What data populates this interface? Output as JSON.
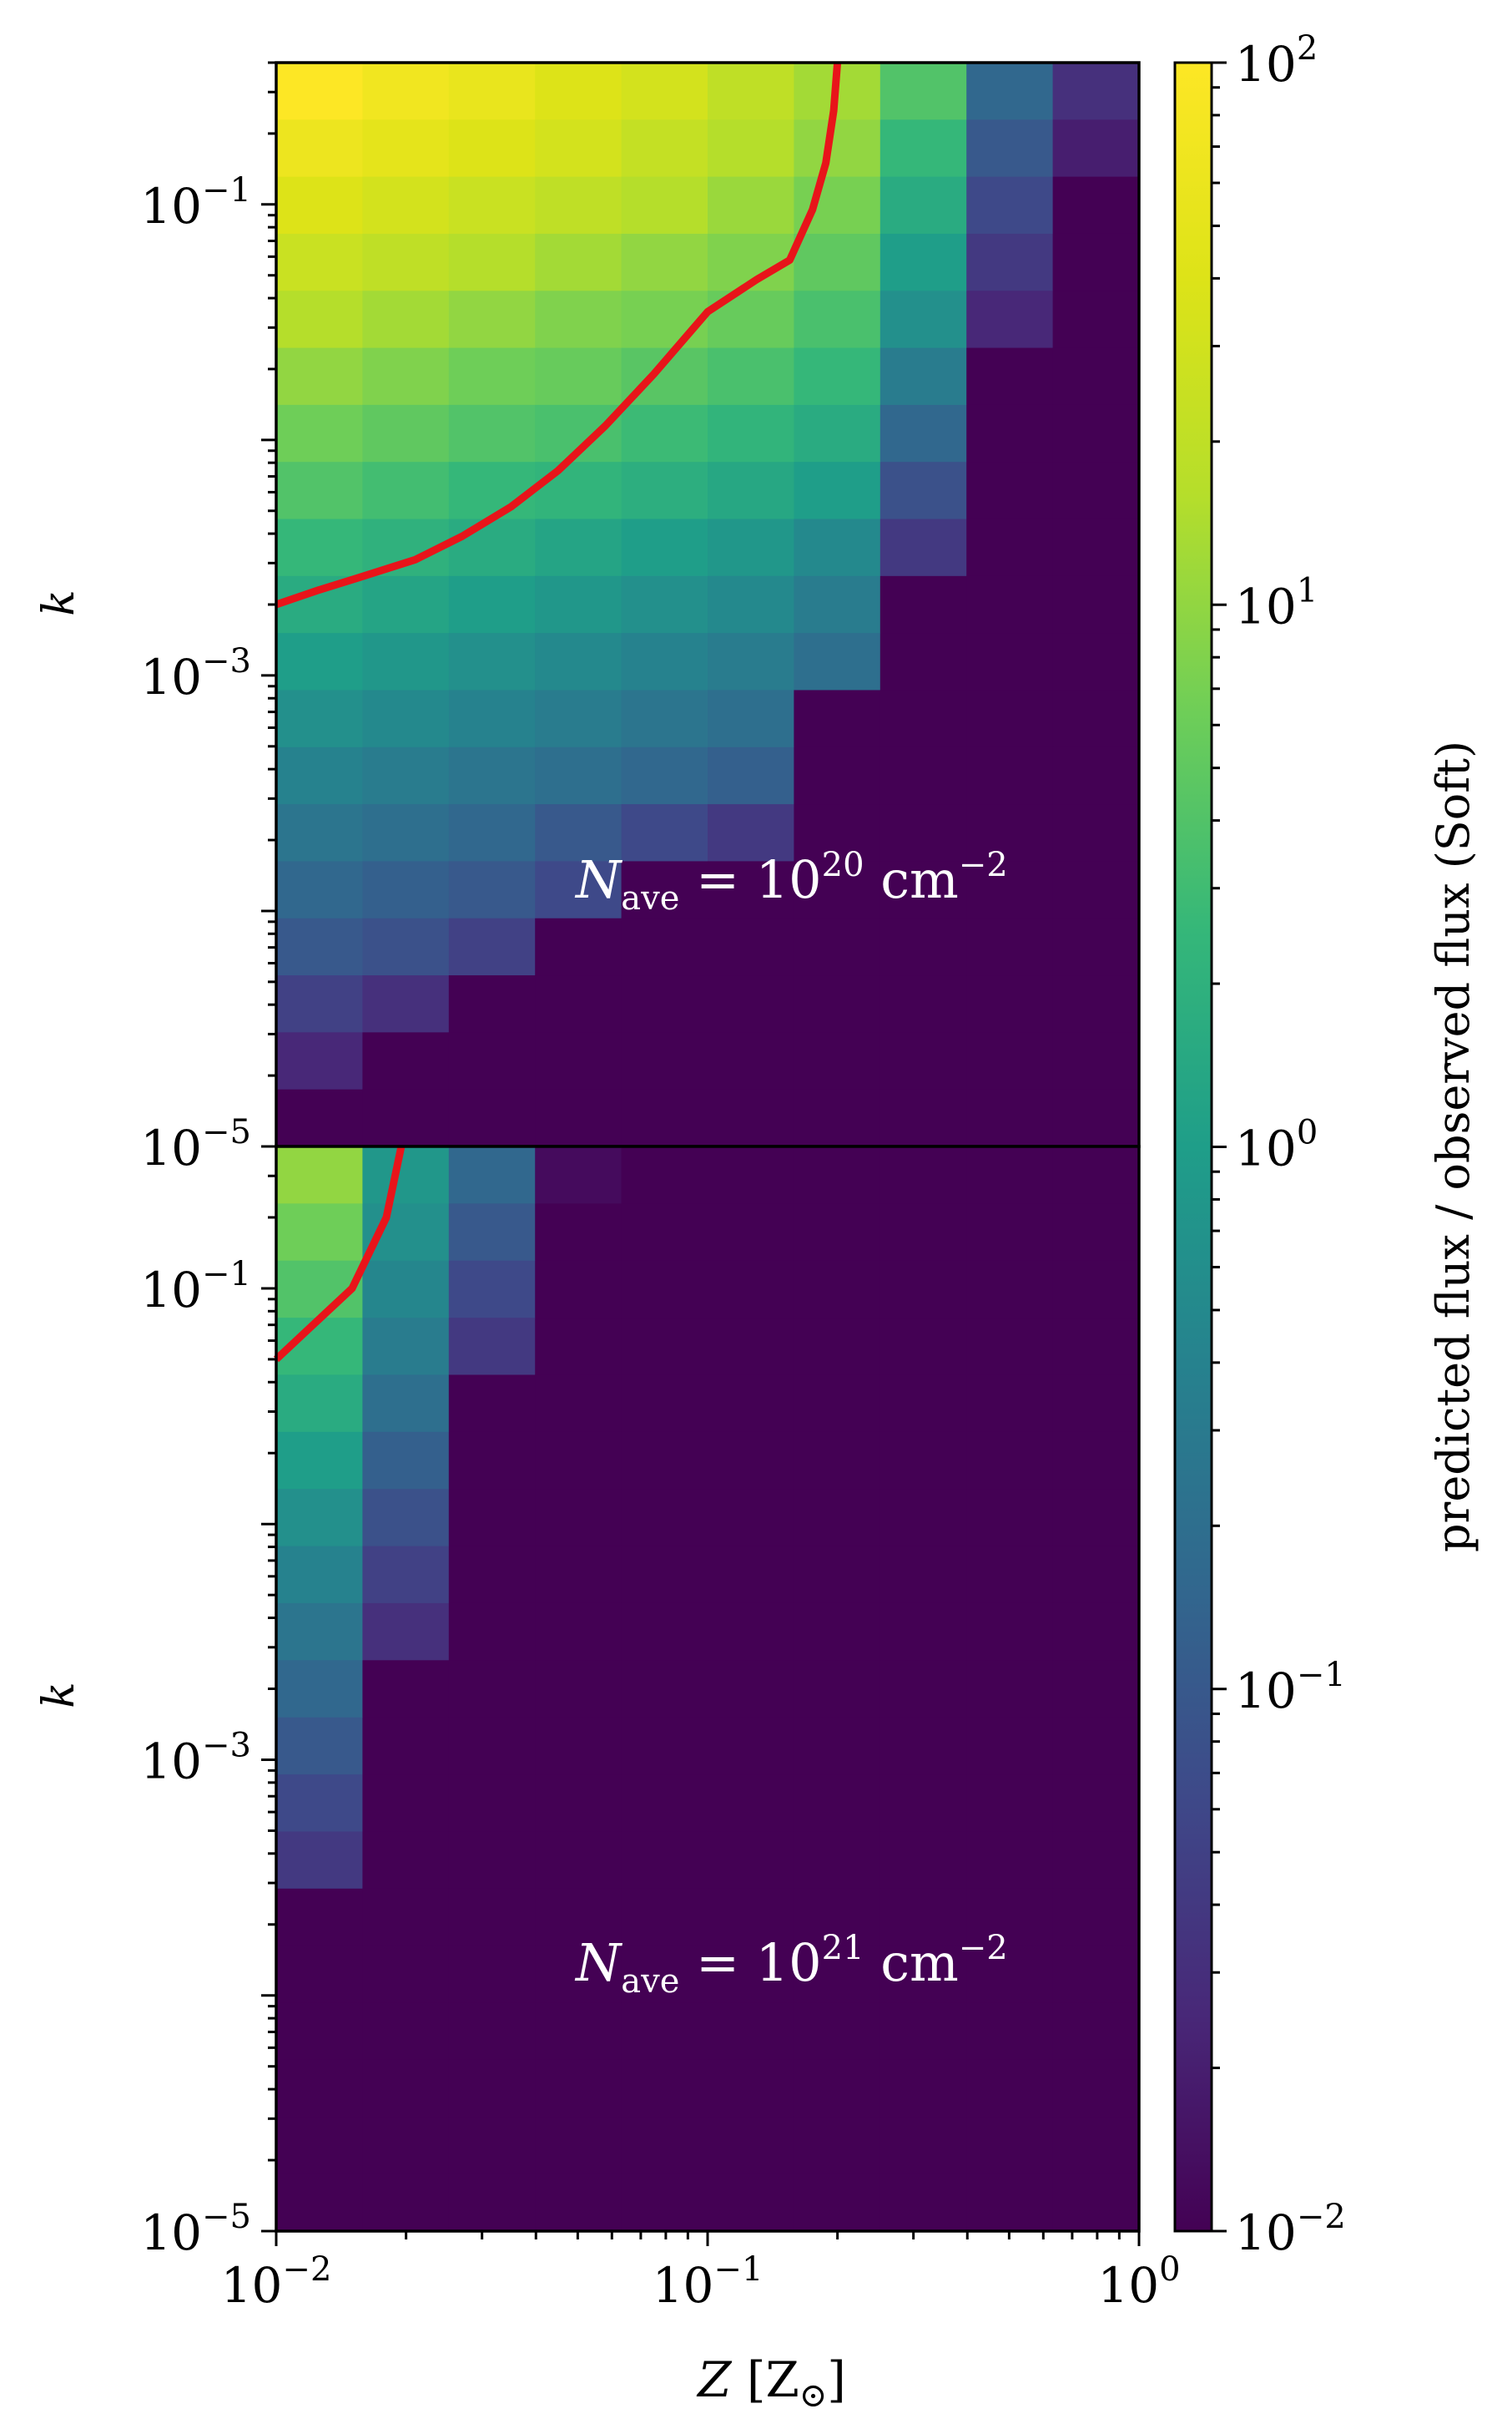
{
  "chart_data": [
    {
      "type": "heatmap",
      "panel": "top",
      "annotation": "N_ave = 10^20 cm^-2",
      "annotation_base": "N",
      "annotation_sub": "ave",
      "annotation_eq": " = 10",
      "annotation_exp": "20",
      "annotation_unit": " cm",
      "annotation_unit_exp": "−2",
      "xlabel": "",
      "ylabel": "k",
      "x_scale": "log",
      "y_scale": "log",
      "xlim": [
        0.01,
        1
      ],
      "ylim": [
        1e-05,
        0.4
      ],
      "y_ticks": [
        "10−1",
        "10−3",
        "10−5"
      ],
      "cells_log10_ratio": [
        [
          2.0,
          1.85,
          1.75,
          1.6,
          1.5,
          1.3,
          1.1,
          0.6,
          -0.8,
          -1.5
        ],
        [
          1.8,
          1.7,
          1.6,
          1.5,
          1.35,
          1.2,
          1.0,
          0.4,
          -1.0,
          -1.7
        ],
        [
          1.6,
          1.5,
          1.4,
          1.3,
          1.2,
          1.05,
          0.85,
          0.2,
          -1.2,
          -2.0
        ],
        [
          1.4,
          1.3,
          1.2,
          1.1,
          1.0,
          0.9,
          0.7,
          0.0,
          -1.4,
          -2.0
        ],
        [
          1.2,
          1.1,
          1.0,
          0.9,
          0.85,
          0.75,
          0.55,
          -0.2,
          -1.6,
          -2.0
        ],
        [
          1.0,
          0.9,
          0.8,
          0.75,
          0.65,
          0.55,
          0.4,
          -0.5,
          -2.0,
          -2.0
        ],
        [
          0.8,
          0.7,
          0.6,
          0.55,
          0.45,
          0.35,
          0.2,
          -0.8,
          -2.0,
          -2.0
        ],
        [
          0.6,
          0.5,
          0.4,
          0.35,
          0.25,
          0.15,
          0.0,
          -1.1,
          -2.0,
          -2.0
        ],
        [
          0.4,
          0.3,
          0.2,
          0.1,
          0.0,
          -0.1,
          -0.3,
          -1.4,
          -2.0,
          -2.0
        ],
        [
          0.2,
          0.1,
          0.0,
          -0.1,
          -0.2,
          -0.3,
          -0.5,
          -2.0,
          -2.0,
          -2.0
        ],
        [
          0.0,
          -0.1,
          -0.2,
          -0.3,
          -0.4,
          -0.5,
          -0.7,
          -2.0,
          -2.0,
          -2.0
        ],
        [
          -0.2,
          -0.3,
          -0.4,
          -0.5,
          -0.6,
          -0.7,
          -2.0,
          -2.0,
          -2.0,
          -2.0
        ],
        [
          -0.4,
          -0.5,
          -0.6,
          -0.7,
          -0.8,
          -0.9,
          -2.0,
          -2.0,
          -2.0,
          -2.0
        ],
        [
          -0.6,
          -0.7,
          -0.8,
          -1.0,
          -1.2,
          -1.4,
          -2.0,
          -2.0,
          -2.0,
          -2.0
        ],
        [
          -0.8,
          -0.9,
          -1.0,
          -1.2,
          -2.0,
          -2.0,
          -2.0,
          -2.0,
          -2.0,
          -2.0
        ],
        [
          -1.0,
          -1.1,
          -1.3,
          -2.0,
          -2.0,
          -2.0,
          -2.0,
          -2.0,
          -2.0,
          -2.0
        ],
        [
          -1.3,
          -1.5,
          -2.0,
          -2.0,
          -2.0,
          -2.0,
          -2.0,
          -2.0,
          -2.0,
          -2.0
        ],
        [
          -1.6,
          -2.0,
          -2.0,
          -2.0,
          -2.0,
          -2.0,
          -2.0,
          -2.0,
          -2.0,
          -2.0
        ],
        [
          -2.0,
          -2.0,
          -2.0,
          -2.0,
          -2.0,
          -2.0,
          -2.0,
          -2.0,
          -2.0,
          -2.0
        ]
      ],
      "contour": {
        "color": "#e8141a",
        "x": [
          0.01,
          0.0125,
          0.0155,
          0.021,
          0.027,
          0.035,
          0.045,
          0.058,
          0.075,
          0.1,
          0.13,
          0.155,
          0.175,
          0.188,
          0.196,
          0.2
        ],
        "y": [
          0.002,
          0.0023,
          0.0026,
          0.0031,
          0.0039,
          0.0052,
          0.0074,
          0.0115,
          0.019,
          0.035,
          0.048,
          0.058,
          0.095,
          0.15,
          0.25,
          0.4
        ]
      }
    },
    {
      "type": "heatmap",
      "panel": "bottom",
      "annotation": "N_ave = 10^21 cm^-2",
      "annotation_base": "N",
      "annotation_sub": "ave",
      "annotation_eq": " = 10",
      "annotation_exp": "21",
      "annotation_unit": " cm",
      "annotation_unit_exp": "−2",
      "xlabel": "Z [Z⊙]",
      "xlabel_main": "Z",
      "xlabel_unit": " [Z",
      "xlabel_sub": "⊙",
      "xlabel_close": "]",
      "ylabel": "k",
      "x_scale": "log",
      "y_scale": "log",
      "xlim": [
        0.01,
        1
      ],
      "ylim": [
        1e-05,
        0.4
      ],
      "x_ticks": [
        "10−2",
        "10−1",
        "100"
      ],
      "y_ticks": [
        "10−1",
        "10−3",
        "10−5"
      ],
      "cells_log10_ratio": [
        [
          1.0,
          -0.1,
          -0.8,
          -1.9,
          -2.0,
          -2.0,
          -2.0,
          -2.0,
          -2.0,
          -2.0
        ],
        [
          0.8,
          -0.2,
          -1.0,
          -2.0,
          -2.0,
          -2.0,
          -2.0,
          -2.0,
          -2.0,
          -2.0
        ],
        [
          0.6,
          -0.35,
          -1.2,
          -2.0,
          -2.0,
          -2.0,
          -2.0,
          -2.0,
          -2.0,
          -2.0
        ],
        [
          0.4,
          -0.5,
          -1.4,
          -2.0,
          -2.0,
          -2.0,
          -2.0,
          -2.0,
          -2.0,
          -2.0
        ],
        [
          0.2,
          -0.7,
          -2.0,
          -2.0,
          -2.0,
          -2.0,
          -2.0,
          -2.0,
          -2.0,
          -2.0
        ],
        [
          0.0,
          -0.9,
          -2.0,
          -2.0,
          -2.0,
          -2.0,
          -2.0,
          -2.0,
          -2.0,
          -2.0
        ],
        [
          -0.2,
          -1.1,
          -2.0,
          -2.0,
          -2.0,
          -2.0,
          -2.0,
          -2.0,
          -2.0,
          -2.0
        ],
        [
          -0.4,
          -1.3,
          -2.0,
          -2.0,
          -2.0,
          -2.0,
          -2.0,
          -2.0,
          -2.0,
          -2.0
        ],
        [
          -0.6,
          -1.5,
          -2.0,
          -2.0,
          -2.0,
          -2.0,
          -2.0,
          -2.0,
          -2.0,
          -2.0
        ],
        [
          -0.8,
          -2.0,
          -2.0,
          -2.0,
          -2.0,
          -2.0,
          -2.0,
          -2.0,
          -2.0,
          -2.0
        ],
        [
          -1.0,
          -2.0,
          -2.0,
          -2.0,
          -2.0,
          -2.0,
          -2.0,
          -2.0,
          -2.0,
          -2.0
        ],
        [
          -1.2,
          -2.0,
          -2.0,
          -2.0,
          -2.0,
          -2.0,
          -2.0,
          -2.0,
          -2.0,
          -2.0
        ],
        [
          -1.4,
          -2.0,
          -2.0,
          -2.0,
          -2.0,
          -2.0,
          -2.0,
          -2.0,
          -2.0,
          -2.0
        ],
        [
          -2.0,
          -2.0,
          -2.0,
          -2.0,
          -2.0,
          -2.0,
          -2.0,
          -2.0,
          -2.0,
          -2.0
        ],
        [
          -2.0,
          -2.0,
          -2.0,
          -2.0,
          -2.0,
          -2.0,
          -2.0,
          -2.0,
          -2.0,
          -2.0
        ],
        [
          -2.0,
          -2.0,
          -2.0,
          -2.0,
          -2.0,
          -2.0,
          -2.0,
          -2.0,
          -2.0,
          -2.0
        ],
        [
          -2.0,
          -2.0,
          -2.0,
          -2.0,
          -2.0,
          -2.0,
          -2.0,
          -2.0,
          -2.0,
          -2.0
        ],
        [
          -2.0,
          -2.0,
          -2.0,
          -2.0,
          -2.0,
          -2.0,
          -2.0,
          -2.0,
          -2.0,
          -2.0
        ],
        [
          -2.0,
          -2.0,
          -2.0,
          -2.0,
          -2.0,
          -2.0,
          -2.0,
          -2.0,
          -2.0,
          -2.0
        ]
      ],
      "contour": {
        "color": "#e8141a",
        "x": [
          0.01,
          0.015,
          0.018,
          0.0195
        ],
        "y": [
          0.05,
          0.1,
          0.2,
          0.4
        ]
      }
    }
  ],
  "colorbar": {
    "label": "predicted flux / observed flux (Soft)",
    "scale": "log",
    "range": [
      0.01,
      100
    ],
    "colormap": "viridis",
    "ticks": [
      "10−2",
      "10−1",
      "100",
      "101",
      "102"
    ]
  }
}
